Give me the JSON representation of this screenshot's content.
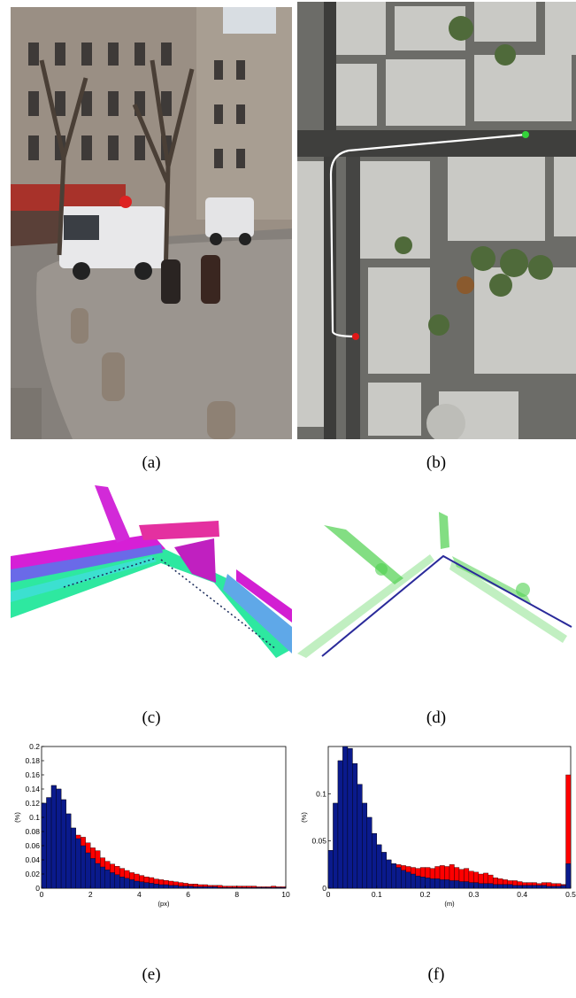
{
  "captions": {
    "a": "(a)",
    "b": "(b)",
    "c": "(c)",
    "d": "(d)",
    "e": "(e)",
    "f": "(f)"
  },
  "chart_data": [
    {
      "type": "bar",
      "title": "",
      "xlabel": "(px)",
      "ylabel": "(%)",
      "xlim": [
        0,
        10
      ],
      "ylim": [
        0,
        0.2
      ],
      "xticks": [
        "0",
        "2",
        "4",
        "6",
        "8",
        "10"
      ],
      "yticks": [
        "0",
        "0.02",
        "0.04",
        "0.06",
        "0.08",
        "0.1",
        "0.12",
        "0.14",
        "0.16",
        "0.18",
        "0.2"
      ],
      "colors": {
        "front": "#0a1a8c",
        "back": "#ff0000"
      },
      "bin_width": 0.2,
      "series": [
        {
          "values": [
            0.12,
            0.128,
            0.145,
            0.14,
            0.125,
            0.105,
            0.085,
            0.07,
            0.06,
            0.05,
            0.042,
            0.035,
            0.03,
            0.026,
            0.022,
            0.019,
            0.016,
            0.014,
            0.012,
            0.01,
            0.009,
            0.008,
            0.007,
            0.006,
            0.005,
            0.005,
            0.004,
            0.004,
            0.003,
            0.003,
            0.003,
            0.002,
            0.002,
            0.002,
            0.002,
            0.002,
            0.001,
            0.001,
            0.001,
            0.001,
            0.001,
            0.001,
            0.001,
            0.001,
            0.001,
            0.001,
            0.001,
            0.001,
            0.001,
            0.001
          ]
        },
        {
          "values": [
            0.12,
            0.128,
            0.145,
            0.14,
            0.125,
            0.105,
            0.085,
            0.075,
            0.072,
            0.064,
            0.057,
            0.053,
            0.043,
            0.038,
            0.034,
            0.031,
            0.028,
            0.025,
            0.022,
            0.02,
            0.018,
            0.016,
            0.015,
            0.013,
            0.012,
            0.011,
            0.01,
            0.009,
            0.008,
            0.007,
            0.006,
            0.006,
            0.005,
            0.005,
            0.004,
            0.004,
            0.004,
            0.003,
            0.003,
            0.003,
            0.003,
            0.003,
            0.003,
            0.003,
            0.002,
            0.002,
            0.002,
            0.003,
            0.002,
            0.002
          ]
        }
      ]
    },
    {
      "type": "bar",
      "title": "",
      "xlabel": "(m)",
      "ylabel": "(%)",
      "xlim": [
        0,
        0.5
      ],
      "ylim": [
        0,
        0.15
      ],
      "xticks": [
        "0",
        "0.1",
        "0.2",
        "0.3",
        "0.4",
        "0.5"
      ],
      "yticks": [
        "0",
        "0.05",
        "0.1"
      ],
      "colors": {
        "front": "#0a1a8c",
        "back": "#ff0000"
      },
      "bin_width": 0.01,
      "series": [
        {
          "values": [
            0.04,
            0.09,
            0.135,
            0.16,
            0.148,
            0.132,
            0.11,
            0.09,
            0.075,
            0.058,
            0.046,
            0.038,
            0.03,
            0.026,
            0.022,
            0.019,
            0.017,
            0.015,
            0.013,
            0.012,
            0.011,
            0.01,
            0.01,
            0.009,
            0.009,
            0.008,
            0.008,
            0.007,
            0.007,
            0.006,
            0.006,
            0.005,
            0.005,
            0.005,
            0.004,
            0.004,
            0.004,
            0.004,
            0.003,
            0.003,
            0.003,
            0.003,
            0.003,
            0.003,
            0.003,
            0.002,
            0.002,
            0.002,
            0.003,
            0.026
          ]
        },
        {
          "values": [
            0.04,
            0.09,
            0.135,
            0.16,
            0.148,
            0.132,
            0.11,
            0.09,
            0.075,
            0.058,
            0.046,
            0.038,
            0.03,
            0.026,
            0.025,
            0.024,
            0.023,
            0.022,
            0.021,
            0.022,
            0.022,
            0.021,
            0.023,
            0.024,
            0.023,
            0.025,
            0.022,
            0.02,
            0.021,
            0.018,
            0.017,
            0.015,
            0.016,
            0.014,
            0.011,
            0.01,
            0.009,
            0.008,
            0.008,
            0.007,
            0.006,
            0.006,
            0.006,
            0.005,
            0.006,
            0.006,
            0.005,
            0.005,
            0.004,
            0.12
          ]
        }
      ]
    }
  ]
}
